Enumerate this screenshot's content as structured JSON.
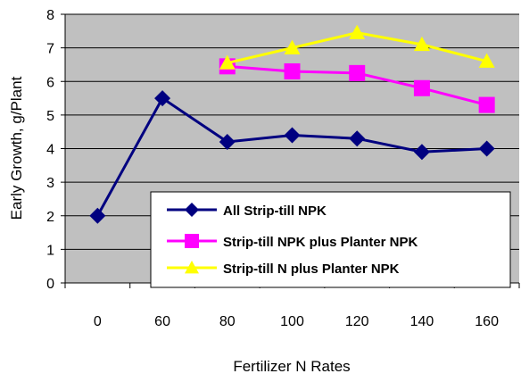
{
  "chart_data": {
    "type": "line",
    "title": "",
    "xlabel": "Fertilizer N Rates",
    "ylabel": "Early Growth, g/Plant",
    "categories": [
      "0",
      "60",
      "80",
      "100",
      "120",
      "140",
      "160"
    ],
    "ylim": [
      0,
      8
    ],
    "yticks": [
      "0",
      "1",
      "2",
      "3",
      "4",
      "5",
      "6",
      "7",
      "8"
    ],
    "grid": "horizontal",
    "legend_position": "inside-bottom-right",
    "series": [
      {
        "name": "All Strip-till NPK",
        "values": [
          2.0,
          5.5,
          4.2,
          4.4,
          4.3,
          3.9,
          4.0
        ],
        "color": "#000080",
        "marker": "diamond"
      },
      {
        "name": "Strip-till NPK plus Planter NPK",
        "values": [
          null,
          null,
          6.45,
          6.3,
          6.25,
          5.8,
          5.3
        ],
        "color": "#ff00ff",
        "marker": "square"
      },
      {
        "name": "Strip-till N plus Planter NPK",
        "values": [
          null,
          null,
          6.55,
          7.0,
          7.45,
          7.1,
          6.6
        ],
        "color": "#ffff00",
        "marker": "triangle"
      }
    ],
    "plot_background": "#c0c0c0"
  }
}
